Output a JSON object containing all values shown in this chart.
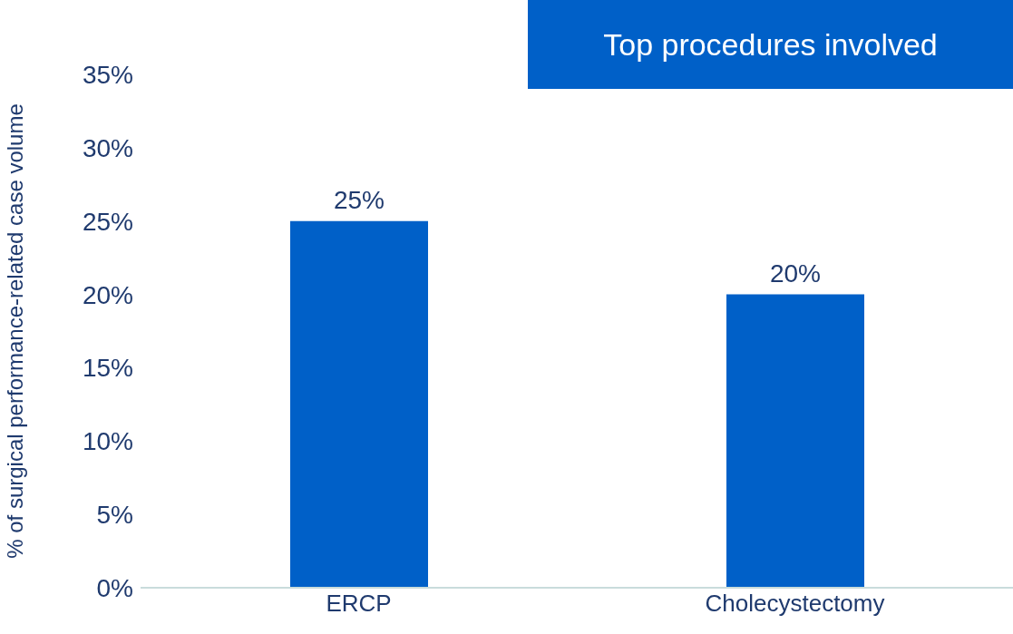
{
  "chart_data": {
    "type": "bar",
    "title": "Top procedures involved",
    "ylabel": "% of surgical performance-related case volume",
    "categories": [
      "ERCP",
      "Cholecystectomy"
    ],
    "values": [
      25,
      20
    ],
    "color": "#0060c8",
    "value_labels": [
      "25%",
      "20%"
    ],
    "ylim": [
      0,
      35
    ],
    "yticks": [
      {
        "value": 0,
        "label": "0%"
      },
      {
        "value": 5,
        "label": "5%"
      },
      {
        "value": 10,
        "label": "10%"
      },
      {
        "value": 15,
        "label": "15%"
      },
      {
        "value": 20,
        "label": "20%"
      },
      {
        "value": 25,
        "label": "25%"
      },
      {
        "value": 30,
        "label": "30%"
      },
      {
        "value": 35,
        "label": "35%"
      }
    ]
  }
}
